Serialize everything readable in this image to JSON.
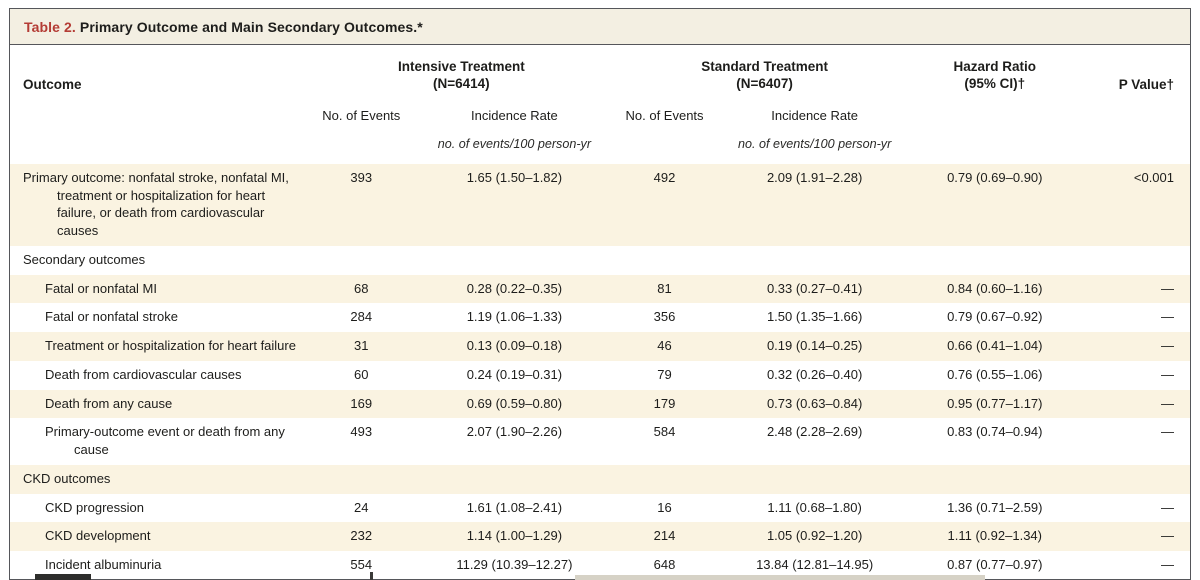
{
  "colors": {
    "accent-red": "#b43c35",
    "stripe-bg": "#faf3e1",
    "title-bg": "#f3efe2"
  },
  "table": {
    "title_label": "Table 2.",
    "title_text": "Primary Outcome and Main Secondary Outcomes.*",
    "header": {
      "outcome": "Outcome",
      "group_intensive_line1": "Intensive Treatment",
      "group_intensive_line2": "(N=6414)",
      "group_standard_line1": "Standard Treatment",
      "group_standard_line2": "(N=6407)",
      "hazard_ratio_line1": "Hazard Ratio",
      "hazard_ratio_line2": "(95% CI)†",
      "p_value": "P Value†",
      "no_of_events": "No. of Events",
      "incidence_rate": "Incidence Rate",
      "units": "no. of events/100 person-yr"
    },
    "rows": [
      {
        "type": "data-top",
        "label": "Primary outcome: nonfatal stroke, nonfatal MI, treatment or hospitalization for heart failure, or death from cardiovas­cular causes",
        "values": [
          "393",
          "1.65 (1.50–1.82)",
          "492",
          "2.09 (1.91–2.28)",
          "0.79 (0.69–0.90)",
          "<0.001"
        ]
      },
      {
        "type": "section",
        "label": "Secondary outcomes"
      },
      {
        "type": "data-sub",
        "label": "Fatal or nonfatal MI",
        "values": [
          "68",
          "0.28 (0.22–0.35)",
          "81",
          "0.33 (0.27–0.41)",
          "0.84 (0.60–1.16)",
          "—"
        ]
      },
      {
        "type": "data-sub",
        "label": "Fatal or nonfatal stroke",
        "values": [
          "284",
          "1.19 (1.06–1.33)",
          "356",
          "1.50 (1.35–1.66)",
          "0.79 (0.67–0.92)",
          "—"
        ]
      },
      {
        "type": "data-sub",
        "label": "Treatment or hospitalization for heart failure",
        "values": [
          "31",
          "0.13 (0.09–0.18)",
          "46",
          "0.19 (0.14–0.25)",
          "0.66 (0.41–1.04)",
          "—"
        ]
      },
      {
        "type": "data-sub",
        "label": "Death from cardiovascular causes",
        "values": [
          "60",
          "0.24 (0.19–0.31)",
          "79",
          "0.32 (0.26–0.40)",
          "0.76 (0.55–1.06)",
          "—"
        ]
      },
      {
        "type": "data-sub",
        "label": "Death from any cause",
        "values": [
          "169",
          "0.69 (0.59–0.80)",
          "179",
          "0.73 (0.63–0.84)",
          "0.95 (0.77–1.17)",
          "—"
        ]
      },
      {
        "type": "data-sub",
        "label": "Primary-outcome event or death from any cause",
        "values": [
          "493",
          "2.07 (1.90–2.26)",
          "584",
          "2.48 (2.28–2.69)",
          "0.83 (0.74–0.94)",
          "—"
        ]
      },
      {
        "type": "section",
        "label": "CKD outcomes"
      },
      {
        "type": "data-sub",
        "label": "CKD progression",
        "values": [
          "24",
          "1.61 (1.08–2.41)",
          "16",
          "1.11 (0.68–1.80)",
          "1.36 (0.71–2.59)",
          "—"
        ]
      },
      {
        "type": "data-sub",
        "label": "CKD development",
        "values": [
          "232",
          "1.14 (1.00–1.29)",
          "214",
          "1.05 (0.92–1.20)",
          "1.11 (0.92–1.34)",
          "—"
        ]
      },
      {
        "type": "data-sub",
        "label": "Incident albuminuria",
        "values": [
          "554",
          "11.29 (10.39–12.27)",
          "648",
          "13.84 (12.81–14.95)",
          "0.87 (0.77–0.97)",
          "—"
        ]
      }
    ]
  }
}
